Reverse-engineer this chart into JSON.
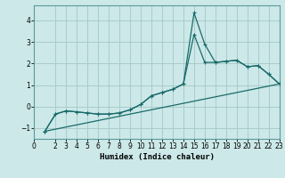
{
  "xlabel": "Humidex (Indice chaleur)",
  "background_color": "#cce8e8",
  "grid_color": "#aacccc",
  "line_color": "#1a6b6b",
  "xlim": [
    0,
    23
  ],
  "ylim": [
    -1.5,
    4.7
  ],
  "xticks": [
    0,
    2,
    3,
    4,
    5,
    6,
    7,
    8,
    9,
    10,
    11,
    12,
    13,
    14,
    15,
    16,
    17,
    18,
    19,
    20,
    21,
    22,
    23
  ],
  "yticks": [
    -1,
    0,
    1,
    2,
    3,
    4
  ],
  "line1_x": [
    1,
    2,
    3,
    4,
    5,
    6,
    7,
    8,
    9,
    10,
    11,
    12,
    13,
    14,
    15,
    16,
    17,
    18,
    19,
    20,
    21,
    22,
    23
  ],
  "line1_y": [
    -1.15,
    -0.35,
    -0.2,
    -0.25,
    -0.3,
    -0.35,
    -0.35,
    -0.3,
    -0.15,
    0.1,
    0.5,
    0.65,
    0.8,
    1.05,
    4.35,
    2.9,
    2.05,
    2.1,
    2.15,
    1.85,
    1.9,
    1.5,
    1.05
  ],
  "line2_x": [
    1,
    2,
    3,
    4,
    5,
    6,
    7,
    8,
    9,
    10,
    11,
    12,
    13,
    14,
    15,
    16,
    17,
    18,
    19,
    20,
    21,
    22,
    23
  ],
  "line2_y": [
    -1.15,
    -0.35,
    -0.2,
    -0.25,
    -0.3,
    -0.35,
    -0.35,
    -0.3,
    -0.15,
    0.1,
    0.5,
    0.65,
    0.8,
    1.05,
    3.35,
    2.05,
    2.05,
    2.1,
    2.15,
    1.85,
    1.9,
    1.5,
    1.05
  ],
  "line3_x": [
    1,
    23
  ],
  "line3_y": [
    -1.15,
    1.05
  ],
  "marker": "+"
}
